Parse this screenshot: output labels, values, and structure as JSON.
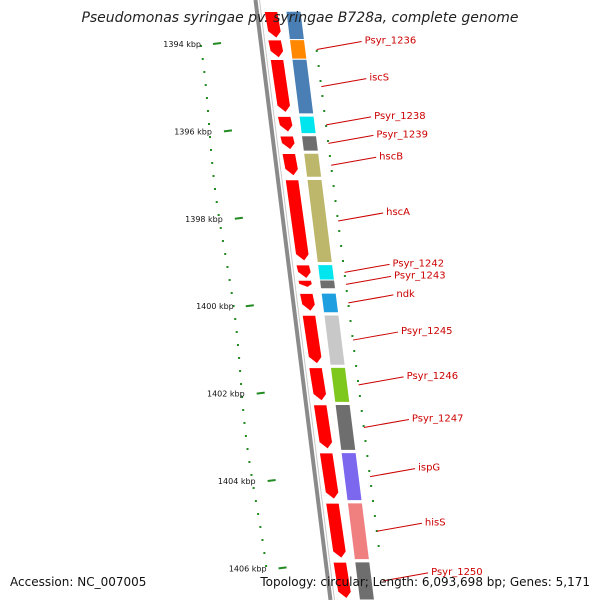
{
  "title": "Pseudomonas syringae pv. syringae B728a, complete genome",
  "accession": "Accession: NC_007005",
  "summary": "Topology: circular; Length: 6,093,698 bp; Genes: 5,171",
  "ticks": [
    {
      "label": "1394 kbp",
      "kbp": 1394
    },
    {
      "label": "1396 kbp",
      "kbp": 1396
    },
    {
      "label": "1398 kbp",
      "kbp": 1398
    },
    {
      "label": "1400 kbp",
      "kbp": 1400
    },
    {
      "label": "1402 kbp",
      "kbp": 1402
    },
    {
      "label": "1404 kbp",
      "kbp": 1404
    },
    {
      "label": "1406 kbp",
      "kbp": 1406
    }
  ],
  "genes": [
    {
      "name": "",
      "start_kbp": 1393.25,
      "end_kbp": 1393.9,
      "color": "#4a7fb5"
    },
    {
      "name": "Psyr_1236",
      "start_kbp": 1393.9,
      "end_kbp": 1394.35,
      "color": "#ff8800"
    },
    {
      "name": "iscS",
      "start_kbp": 1394.35,
      "end_kbp": 1395.6,
      "color": "#4a7fb5"
    },
    {
      "name": "Psyr_1238",
      "start_kbp": 1395.65,
      "end_kbp": 1396.05,
      "color": "#00e5ee"
    },
    {
      "name": "Psyr_1239",
      "start_kbp": 1396.1,
      "end_kbp": 1396.45,
      "color": "#6e6e6e"
    },
    {
      "name": "hscB",
      "start_kbp": 1396.5,
      "end_kbp": 1397.05,
      "color": "#bdb76b"
    },
    {
      "name": "hscA",
      "start_kbp": 1397.1,
      "end_kbp": 1399.0,
      "color": "#bdb76b"
    },
    {
      "name": "Psyr_1242",
      "start_kbp": 1399.05,
      "end_kbp": 1399.4,
      "color": "#00e5ee"
    },
    {
      "name": "Psyr_1243",
      "start_kbp": 1399.4,
      "end_kbp": 1399.6,
      "color": "#6e6e6e"
    },
    {
      "name": "ndk",
      "start_kbp": 1399.7,
      "end_kbp": 1400.15,
      "color": "#1e9fe0"
    },
    {
      "name": "Psyr_1245",
      "start_kbp": 1400.2,
      "end_kbp": 1401.35,
      "color": "#c8c8c8"
    },
    {
      "name": "Psyr_1246",
      "start_kbp": 1401.4,
      "end_kbp": 1402.2,
      "color": "#7ec81e"
    },
    {
      "name": "Psyr_1247",
      "start_kbp": 1402.25,
      "end_kbp": 1403.3,
      "color": "#6e6e6e"
    },
    {
      "name": "ispG",
      "start_kbp": 1403.35,
      "end_kbp": 1404.45,
      "color": "#7b68ee"
    },
    {
      "name": "hisS",
      "start_kbp": 1404.5,
      "end_kbp": 1405.8,
      "color": "#f08080"
    },
    {
      "name": "Psyr_1250",
      "start_kbp": 1405.85,
      "end_kbp": 1407.0,
      "color": "#6e6e6e"
    }
  ],
  "colors": {
    "cds": "#ff0000",
    "label": "#cc0000",
    "tick": "#228b22",
    "backbone": "#8a8a8a"
  }
}
